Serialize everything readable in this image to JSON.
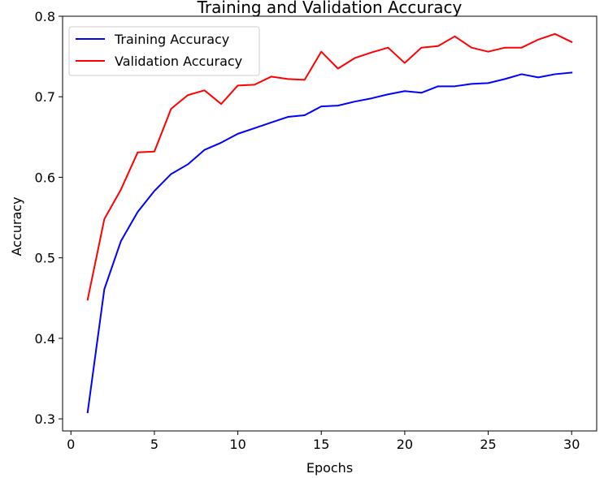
{
  "chart_data": {
    "type": "line",
    "title": "Training and Validation Accuracy",
    "xlabel": "Epochs",
    "ylabel": "Accuracy",
    "xlim": [
      -0.5,
      31.5
    ],
    "ylim": [
      0.285,
      0.8
    ],
    "xticks": [
      0,
      5,
      10,
      15,
      20,
      25,
      30
    ],
    "yticks": [
      0.3,
      0.4,
      0.5,
      0.6,
      0.7,
      0.8
    ],
    "xtick_labels": [
      "0",
      "5",
      "10",
      "15",
      "20",
      "25",
      "30"
    ],
    "ytick_labels": [
      "0.3",
      "0.4",
      "0.5",
      "0.6",
      "0.7",
      "0.8"
    ],
    "grid": false,
    "legend_position": "top-left",
    "x": [
      1,
      2,
      3,
      4,
      5,
      6,
      7,
      8,
      9,
      10,
      11,
      12,
      13,
      14,
      15,
      16,
      17,
      18,
      19,
      20,
      21,
      22,
      23,
      24,
      25,
      26,
      27,
      28,
      29,
      30
    ],
    "series": [
      {
        "name": "Training Accuracy",
        "color": "#0000ff",
        "values": [
          0.308,
          0.461,
          0.521,
          0.557,
          0.583,
          0.604,
          0.616,
          0.634,
          0.643,
          0.654,
          0.661,
          0.668,
          0.675,
          0.677,
          0.688,
          0.689,
          0.694,
          0.698,
          0.703,
          0.707,
          0.705,
          0.713,
          0.713,
          0.716,
          0.717,
          0.722,
          0.728,
          0.724,
          0.728,
          0.73
        ]
      },
      {
        "name": "Validation Accuracy",
        "color": "#ff0000",
        "values": [
          0.448,
          0.548,
          0.585,
          0.631,
          0.632,
          0.685,
          0.702,
          0.708,
          0.691,
          0.714,
          0.715,
          0.725,
          0.722,
          0.721,
          0.756,
          0.735,
          0.748,
          0.755,
          0.761,
          0.742,
          0.761,
          0.763,
          0.775,
          0.761,
          0.756,
          0.761,
          0.761,
          0.771,
          0.778,
          0.768
        ]
      }
    ]
  }
}
